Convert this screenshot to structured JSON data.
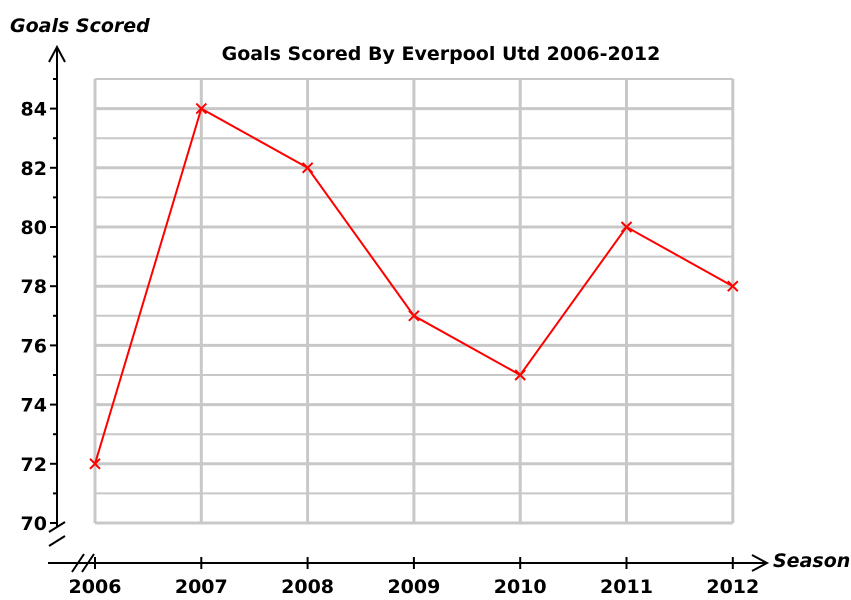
{
  "chart_data": {
    "type": "line",
    "title": "Goals Scored By Everpool Utd 2006-2012",
    "xlabel": "Season",
    "ylabel": "Goals Scored",
    "categories": [
      "2006",
      "2007",
      "2008",
      "2009",
      "2010",
      "2011",
      "2012"
    ],
    "series": [
      {
        "values": [
          72,
          84,
          82,
          77,
          75,
          80,
          78
        ]
      }
    ],
    "yticks": [
      "70",
      "72",
      "74",
      "76",
      "78",
      "80",
      "82",
      "84"
    ],
    "ylim": [
      70,
      85
    ],
    "grid": true,
    "axis_break": true,
    "marker": "x",
    "line_color": "#ff0000",
    "grid_color": "#c8c8c8"
  }
}
